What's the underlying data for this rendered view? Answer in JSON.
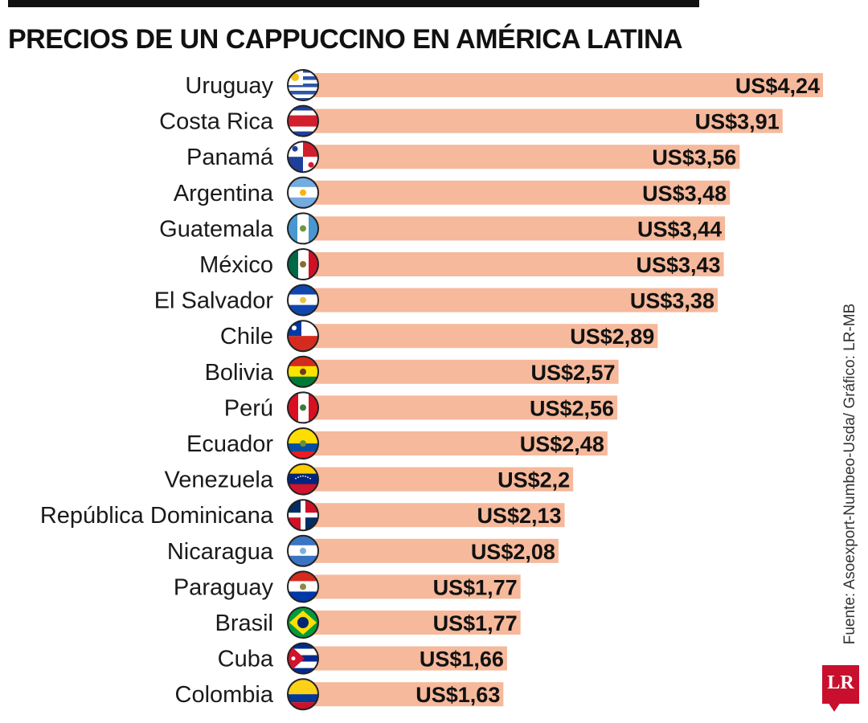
{
  "header": {
    "title": "PRECIOS DE UN CAPPUCCINO EN AMÉRICA LATINA"
  },
  "source": "Fuente: Asoexport-Numbeo-Usda/ Gráfico: LR-MB",
  "logo": {
    "text": "LR"
  },
  "colors": {
    "bar": "#f6b99b",
    "text": "#111111",
    "logo": "#c8102e"
  },
  "chart_data": {
    "type": "bar",
    "orientation": "horizontal",
    "title": "PRECIOS DE UN CAPPUCCINO EN AMÉRICA LATINA",
    "xlabel": "",
    "ylabel": "",
    "xlim": [
      0,
      4.24
    ],
    "grid": false,
    "legend": "none",
    "categories": [
      "Uruguay",
      "Costa Rica",
      "Panamá",
      "Argentina",
      "Guatemala",
      "México",
      "El Salvador",
      "Chile",
      "Bolivia",
      "Perú",
      "Ecuador",
      "Venezuela",
      "República Dominicana",
      "Nicaragua",
      "Paraguay",
      "Brasil",
      "Cuba",
      "Colombia"
    ],
    "values": [
      4.24,
      3.91,
      3.56,
      3.48,
      3.44,
      3.43,
      3.38,
      2.89,
      2.57,
      2.56,
      2.48,
      2.2,
      2.13,
      2.08,
      1.77,
      1.77,
      1.66,
      1.63
    ],
    "value_labels": [
      "US$4,24",
      "US$3,91",
      "US$3,56",
      "US$3,48",
      "US$3,44",
      "US$3,43",
      "US$3,38",
      "US$2,89",
      "US$2,57",
      "US$2,56",
      "US$2,48",
      "US$2,2",
      "US$2,13",
      "US$2,08",
      "US$1,77",
      "US$1,77",
      "US$1,66",
      "US$1,63"
    ],
    "flag_icons": [
      "flag-uruguay-icon",
      "flag-costa-rica-icon",
      "flag-panama-icon",
      "flag-argentina-icon",
      "flag-guatemala-icon",
      "flag-mexico-icon",
      "flag-el-salvador-icon",
      "flag-chile-icon",
      "flag-bolivia-icon",
      "flag-peru-icon",
      "flag-ecuador-icon",
      "flag-venezuela-icon",
      "flag-dominican-republic-icon",
      "flag-nicaragua-icon",
      "flag-paraguay-icon",
      "flag-brazil-icon",
      "flag-cuba-icon",
      "flag-colombia-icon"
    ]
  }
}
